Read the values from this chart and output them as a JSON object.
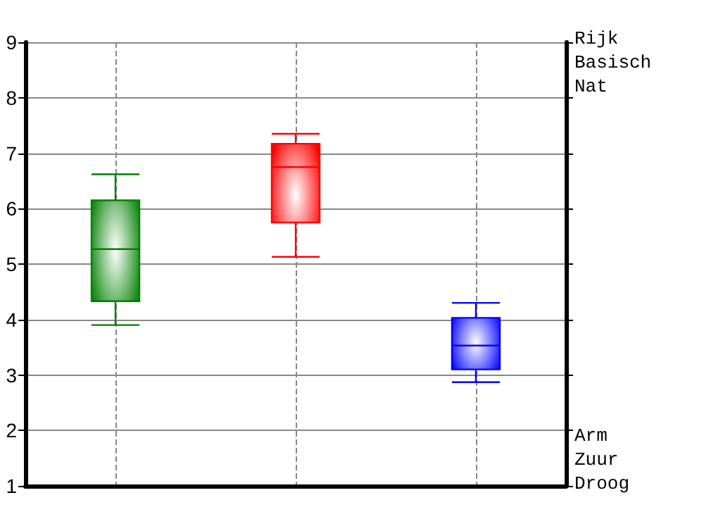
{
  "chart_data": {
    "type": "box",
    "categories": [
      null,
      null,
      null
    ],
    "boxes": [
      {
        "low": 3.9,
        "q1": 4.33,
        "median": 5.27,
        "q3": 6.15,
        "high": 6.62
      },
      {
        "low": 5.13,
        "q1": 5.75,
        "median": 6.75,
        "q3": 7.17,
        "high": 7.35
      },
      {
        "low": 2.87,
        "q1": 3.1,
        "median": 3.53,
        "q3": 4.03,
        "high": 4.3
      }
    ],
    "colors": [
      "#008000",
      "#ff0000",
      "#0000ff"
    ],
    "ylim": [
      1,
      9
    ],
    "yticks": [
      1,
      2,
      3,
      4,
      5,
      6,
      7,
      8,
      9
    ],
    "grid": true,
    "annotations": [
      "Rijk",
      "Basisch",
      "Nat",
      "Arm",
      "Zuur",
      "Droog"
    ]
  }
}
